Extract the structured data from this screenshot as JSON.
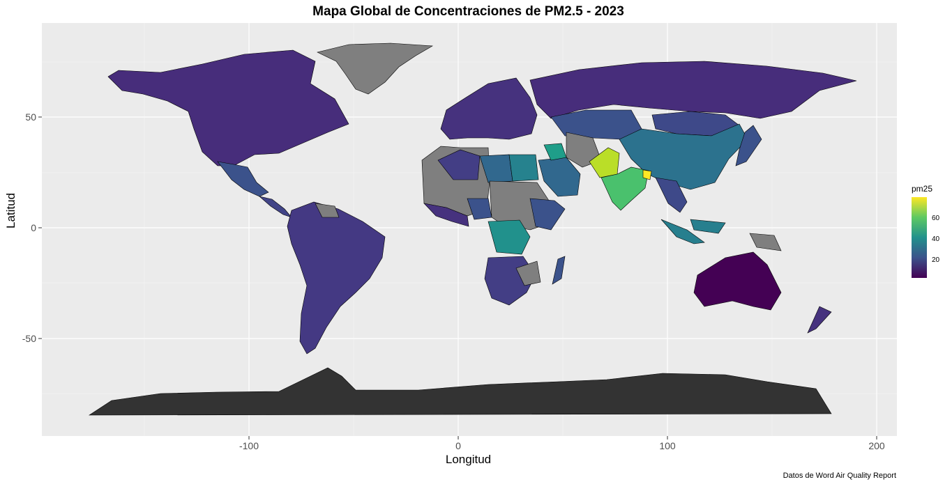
{
  "title": "Mapa Global de Concentraciones de PM2.5 - 2023",
  "xlabel": "Longitud",
  "ylabel": "Latitud",
  "caption": "Datos de Word Air Quality Report",
  "legend": {
    "title": "pm25",
    "ticks": [
      "20",
      "40",
      "60"
    ]
  },
  "x_ticks": [
    "-100",
    "0",
    "100",
    "200"
  ],
  "y_ticks": [
    "50",
    "0",
    "-50"
  ],
  "colors": {
    "panel": "#ebebeb",
    "grid": "#ffffff",
    "na": "#7f7f7f",
    "low": "#440154",
    "mid": "#21918c",
    "high": "#fde725",
    "antarctica": "#333333"
  },
  "chart_data": {
    "type": "heatmap",
    "title": "Mapa Global de Concentraciones de PM2.5 - 2023",
    "xlabel": "Longitud",
    "ylabel": "Latitud",
    "xlim": [
      -190,
      210
    ],
    "ylim": [
      -94,
      94
    ],
    "legend": "right",
    "scale": {
      "name": "pm25",
      "min": 4,
      "max": 80,
      "ticks": [
        20,
        40,
        60
      ]
    }
  }
}
